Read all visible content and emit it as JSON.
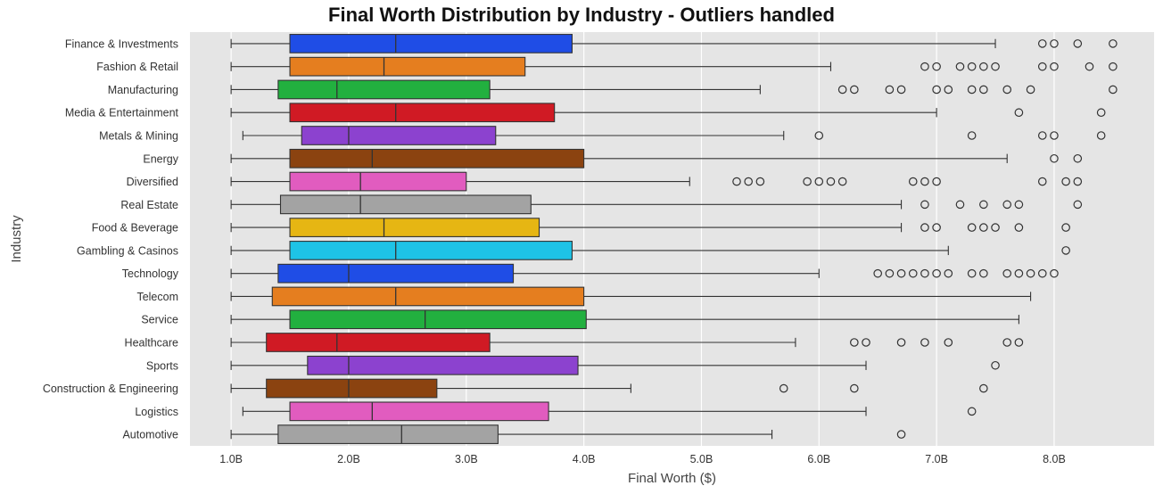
{
  "chart_data": {
    "type": "boxplot",
    "title": "Final Worth Distribution by Industry - Outliers handled",
    "xlabel": "Final Worth ($)",
    "ylabel": "Industry",
    "xlim": [
      0.65,
      8.85
    ],
    "x_unit": "B",
    "xticks": [
      1,
      2,
      3,
      4,
      5,
      6,
      7,
      8
    ],
    "xtick_labels": [
      "1.0B",
      "2.0B",
      "3.0B",
      "4.0B",
      "5.0B",
      "6.0B",
      "7.0B",
      "8.0B"
    ],
    "grid": true,
    "background": "#e5e5e5",
    "categories": [
      "Finance & Investments",
      "Fashion & Retail",
      "Manufacturing",
      "Media & Entertainment",
      "Metals & Mining",
      "Energy",
      "Diversified",
      "Real Estate",
      "Food & Beverage",
      "Gambling & Casinos",
      "Technology",
      "Telecom",
      "Service",
      "Healthcare",
      "Sports",
      "Construction & Engineering",
      "Logistics",
      "Automotive"
    ],
    "colors": [
      "#1f4de6",
      "#e57e1f",
      "#22b03f",
      "#d01a24",
      "#8c42cf",
      "#8b4310",
      "#e15cbf",
      "#a3a3a3",
      "#e6b613",
      "#1ec3e6",
      "#1f4de6",
      "#e57e1f",
      "#22b03f",
      "#d01a24",
      "#8c42cf",
      "#8b4310",
      "#e15cbf",
      "#a3a3a3"
    ],
    "series": [
      {
        "category": "Finance & Investments",
        "whisker_low": 1.0,
        "q1": 1.5,
        "median": 2.4,
        "q3": 3.9,
        "whisker_high": 7.5,
        "outliers": [
          7.9,
          8.0,
          8.2,
          8.5
        ]
      },
      {
        "category": "Fashion & Retail",
        "whisker_low": 1.0,
        "q1": 1.5,
        "median": 2.3,
        "q3": 3.5,
        "whisker_high": 6.1,
        "outliers": [
          6.9,
          7.0,
          7.2,
          7.3,
          7.4,
          7.5,
          7.9,
          8.0,
          8.3,
          8.5
        ]
      },
      {
        "category": "Manufacturing",
        "whisker_low": 1.0,
        "q1": 1.4,
        "median": 1.9,
        "q3": 3.2,
        "whisker_high": 5.5,
        "outliers": [
          6.2,
          6.3,
          6.6,
          6.7,
          7.0,
          7.1,
          7.3,
          7.4,
          7.6,
          7.8,
          8.5
        ]
      },
      {
        "category": "Media & Entertainment",
        "whisker_low": 1.0,
        "q1": 1.5,
        "median": 2.4,
        "q3": 3.75,
        "whisker_high": 7.0,
        "outliers": [
          7.7,
          8.4
        ]
      },
      {
        "category": "Metals & Mining",
        "whisker_low": 1.1,
        "q1": 1.6,
        "median": 2.0,
        "q3": 3.25,
        "whisker_high": 5.7,
        "outliers": [
          6.0,
          7.3,
          7.9,
          8.0,
          8.4
        ]
      },
      {
        "category": "Energy",
        "whisker_low": 1.0,
        "q1": 1.5,
        "median": 2.2,
        "q3": 4.0,
        "whisker_high": 7.6,
        "outliers": [
          8.0,
          8.2
        ]
      },
      {
        "category": "Diversified",
        "whisker_low": 1.0,
        "q1": 1.5,
        "median": 2.1,
        "q3": 3.0,
        "whisker_high": 4.9,
        "outliers": [
          5.3,
          5.4,
          5.5,
          5.9,
          6.0,
          6.1,
          6.2,
          6.8,
          6.9,
          7.0,
          7.9,
          8.1,
          8.2
        ]
      },
      {
        "category": "Real Estate",
        "whisker_low": 1.0,
        "q1": 1.42,
        "median": 2.1,
        "q3": 3.55,
        "whisker_high": 6.7,
        "outliers": [
          6.9,
          7.2,
          7.4,
          7.6,
          7.7,
          8.2
        ]
      },
      {
        "category": "Food & Beverage",
        "whisker_low": 1.0,
        "q1": 1.5,
        "median": 2.3,
        "q3": 3.62,
        "whisker_high": 6.7,
        "outliers": [
          6.9,
          7.0,
          7.3,
          7.4,
          7.5,
          7.7,
          8.1
        ]
      },
      {
        "category": "Gambling & Casinos",
        "whisker_low": 1.0,
        "q1": 1.5,
        "median": 2.4,
        "q3": 3.9,
        "whisker_high": 7.1,
        "outliers": [
          8.1
        ]
      },
      {
        "category": "Technology",
        "whisker_low": 1.0,
        "q1": 1.4,
        "median": 2.0,
        "q3": 3.4,
        "whisker_high": 6.0,
        "outliers": [
          6.5,
          6.6,
          6.7,
          6.8,
          6.9,
          7.0,
          7.1,
          7.3,
          7.4,
          7.6,
          7.7,
          7.8,
          7.9,
          8.0
        ]
      },
      {
        "category": "Telecom",
        "whisker_low": 1.0,
        "q1": 1.35,
        "median": 2.4,
        "q3": 4.0,
        "whisker_high": 7.8,
        "outliers": []
      },
      {
        "category": "Service",
        "whisker_low": 1.0,
        "q1": 1.5,
        "median": 2.65,
        "q3": 4.02,
        "whisker_high": 7.7,
        "outliers": []
      },
      {
        "category": "Healthcare",
        "whisker_low": 1.0,
        "q1": 1.3,
        "median": 1.9,
        "q3": 3.2,
        "whisker_high": 5.8,
        "outliers": [
          6.3,
          6.4,
          6.7,
          6.9,
          7.1,
          7.6,
          7.7
        ]
      },
      {
        "category": "Sports",
        "whisker_low": 1.0,
        "q1": 1.65,
        "median": 2.0,
        "q3": 3.95,
        "whisker_high": 6.4,
        "outliers": [
          7.5
        ]
      },
      {
        "category": "Construction & Engineering",
        "whisker_low": 1.0,
        "q1": 1.3,
        "median": 2.0,
        "q3": 2.75,
        "whisker_high": 4.4,
        "outliers": [
          5.7,
          6.3,
          7.4
        ]
      },
      {
        "category": "Logistics",
        "whisker_low": 1.1,
        "q1": 1.5,
        "median": 2.2,
        "q3": 3.7,
        "whisker_high": 6.4,
        "outliers": [
          7.3
        ]
      },
      {
        "category": "Automotive",
        "whisker_low": 1.0,
        "q1": 1.4,
        "median": 2.45,
        "q3": 3.27,
        "whisker_high": 5.6,
        "outliers": [
          6.7
        ]
      }
    ]
  }
}
